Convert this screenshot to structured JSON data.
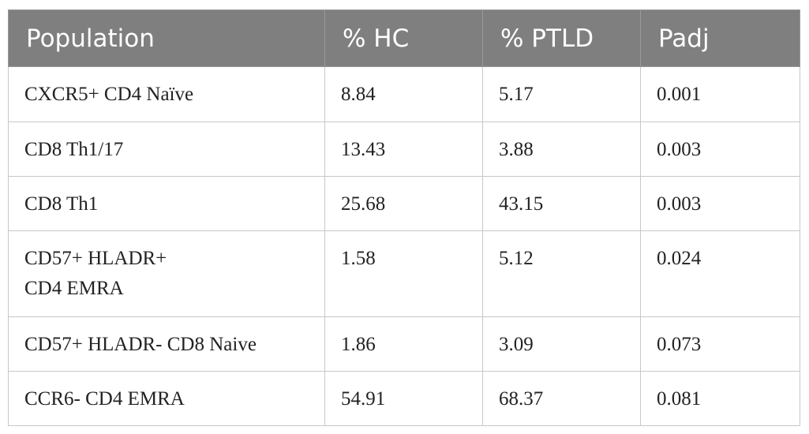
{
  "table": {
    "header": [
      "Population",
      "% HC",
      "% PTLD",
      "Padj"
    ],
    "rows": [
      [
        "CXCR5+ CD4 Naïve",
        "8.84",
        "5.17",
        "0.001"
      ],
      [
        "CD8 Th1/17",
        "13.43",
        "3.88",
        "0.003"
      ],
      [
        "CD8 Th1",
        "25.68",
        "43.15",
        "0.003"
      ],
      [
        "CD57+ HLADR+\nCD4 EMRA",
        "1.58",
        "5.12",
        "0.024"
      ],
      [
        "CD57+ HLADR- CD8 Naive",
        "1.86",
        "3.09",
        "0.073"
      ],
      [
        "CCR6- CD4 EMRA",
        "54.91",
        "68.37",
        "0.081"
      ]
    ]
  }
}
